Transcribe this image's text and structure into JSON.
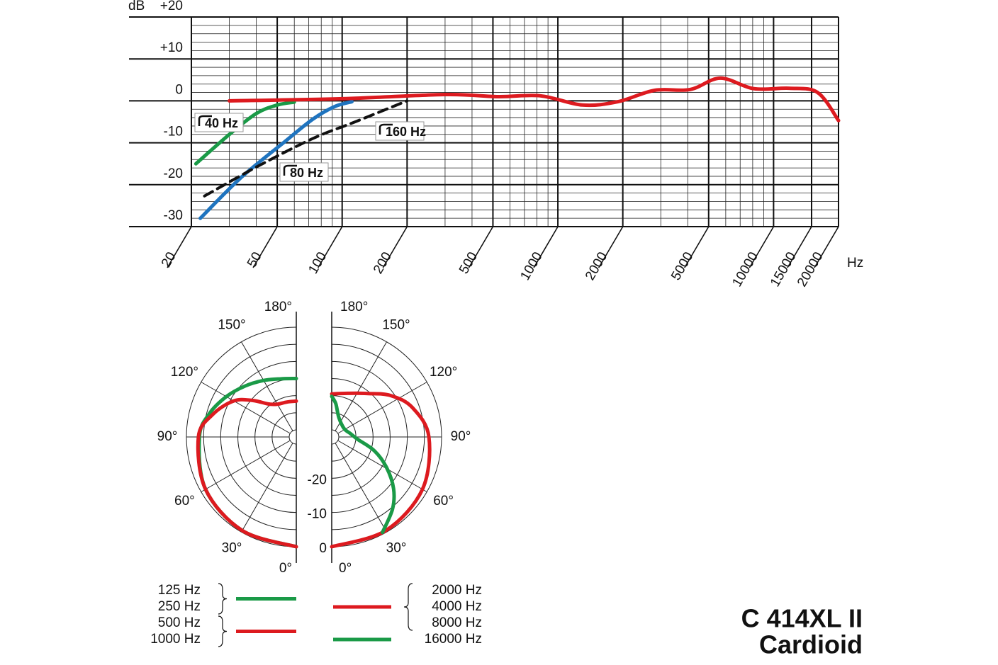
{
  "chart_data": [
    {
      "type": "line",
      "x_scale": "log",
      "y_label": "dB",
      "x_label": "Hz",
      "xlim": [
        20,
        20000
      ],
      "xticks": [
        20,
        50,
        100,
        200,
        500,
        1000,
        2000,
        5000,
        10000,
        15000,
        20000
      ],
      "ylim": [
        -30,
        20
      ],
      "yticks": [
        -30,
        -20,
        -10,
        0,
        {
          "value": 10,
          "label": "+10"
        },
        {
          "value": 20,
          "label": "+20"
        }
      ],
      "grid": true,
      "series": [
        {
          "name": "40 Hz",
          "color": "#1a9a47",
          "x": [
            21,
            30,
            40,
            50,
            60
          ],
          "values": [
            -15,
            -8,
            -3,
            -1,
            -0.3
          ]
        },
        {
          "name": "80 Hz",
          "color": "#1f74bf",
          "x": [
            22,
            34,
            54,
            73,
            92,
            111
          ],
          "values": [
            -28,
            -18.3,
            -9.8,
            -4.4,
            -1.4,
            -0.2
          ]
        },
        {
          "name": "160 Hz",
          "color": "#111111",
          "dashed": true,
          "x": [
            23,
            40,
            73,
            115,
            200
          ],
          "values": [
            -22.7,
            -15.8,
            -9,
            -5,
            0
          ]
        },
        {
          "color": "#dd1a1f",
          "x": [
            30,
            100,
            300,
            530,
            830,
            1300,
            1900,
            2800,
            4100,
            5660,
            8100,
            11800,
            16000,
            20000
          ],
          "values": [
            0,
            0.5,
            1.5,
            1,
            1.2,
            -1,
            -0.2,
            2.5,
            2.7,
            5.4,
            2.9,
            3,
            2,
            -4.7
          ]
        }
      ]
    },
    {
      "type": "polar",
      "rlim": [
        -30,
        0
      ],
      "rticks": [
        -20,
        -10,
        0
      ],
      "halves": [
        {
          "side": "left",
          "angle_ticks": [
            {
              "value": 0,
              "label": "0°"
            },
            {
              "value": 30,
              "label": "30°"
            },
            {
              "value": 60,
              "label": "60°"
            },
            {
              "value": 90,
              "label": "90°"
            },
            {
              "value": 120,
              "label": "120°"
            },
            {
              "value": 150,
              "label": "150°"
            },
            {
              "value": 180,
              "label": "180°"
            }
          ],
          "series": [
            {
              "color": "#1a9a47",
              "legend_labels": [
                "125 Hz",
                "250 Hz"
              ],
              "angles": [
                0,
                30,
                60,
                90,
                105,
                120,
                135,
                150,
                165,
                180
              ],
              "values": [
                0,
                -0.5,
                -1.5,
                -3.8,
                -5.8,
                -8.5,
                -11,
                -13,
                -14.5,
                -15
              ]
            },
            {
              "color": "#dd1a1f",
              "legend_labels": [
                "500 Hz",
                "1000 Hz"
              ],
              "angles": [
                0,
                30,
                60,
                90,
                105,
                120,
                130,
                140,
                150,
                165,
                180
              ],
              "values": [
                0,
                -0.5,
                -1.5,
                -3.5,
                -6.8,
                -11,
                -15.5,
                -19.5,
                -21,
                -21.5,
                -21.6
              ]
            }
          ]
        },
        {
          "side": "right",
          "angle_ticks": [
            {
              "value": 0,
              "label": "0°"
            },
            {
              "value": 30,
              "label": "30°"
            },
            {
              "value": 60,
              "label": "60°"
            },
            {
              "value": 90,
              "label": "90°"
            },
            {
              "value": 120,
              "label": "120°"
            },
            {
              "value": 150,
              "label": "150°"
            },
            {
              "value": 180,
              "label": "180°"
            }
          ],
          "series": [
            {
              "color": "#dd1a1f",
              "legend_labels": [
                "2000 Hz",
                "4000 Hz",
                "8000 Hz"
              ],
              "angles": [
                0,
                30,
                60,
                90,
                110,
                125,
                140,
                160,
                180
              ],
              "values": [
                0,
                -0.5,
                -1.5,
                -3.7,
                -7,
                -11,
                -15.5,
                -18.5,
                -19.5
              ]
            },
            {
              "color": "#1a9a47",
              "legend_labels": [
                "16000 Hz"
              ],
              "angles": [
                28,
                40,
                50,
                61,
                72,
                85,
                100,
                125,
                160,
                173,
                180
              ],
              "values": [
                -0.5,
                -4.5,
                -8.5,
                -13.8,
                -19,
                -24.5,
                -26.5,
                -27.7,
                -26,
                -22.3,
                -20.2
              ]
            }
          ]
        }
      ]
    }
  ],
  "caption": [
    "C 414XL II",
    "Cardioid"
  ]
}
